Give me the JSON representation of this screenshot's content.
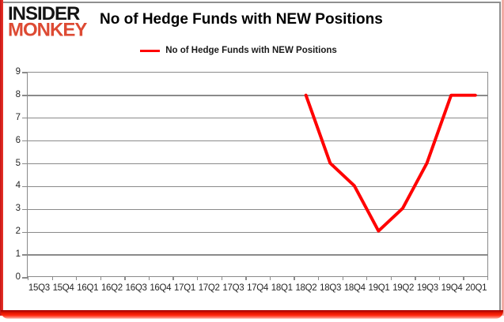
{
  "logo": {
    "line1": "INSIDER",
    "line2": "MONKEY"
  },
  "header": {
    "title": "No of Hedge Funds with NEW Positions"
  },
  "legend": {
    "label": "No of Hedge Funds with NEW Positions"
  },
  "colors": {
    "line": "#FF0000",
    "accent_red": "#E81800",
    "logo_red": "#DD4A33",
    "grid": "#8A8A8A",
    "text": "#262626"
  },
  "chart_data": {
    "type": "line",
    "title": "No of Hedge Funds with NEW Positions",
    "categories": [
      "15Q3",
      "15Q4",
      "16Q1",
      "16Q2",
      "16Q3",
      "16Q4",
      "17Q1",
      "17Q2",
      "17Q3",
      "17Q4",
      "18Q1",
      "18Q2",
      "18Q3",
      "18Q4",
      "19Q1",
      "19Q2",
      "19Q3",
      "19Q4",
      "20Q1"
    ],
    "series": [
      {
        "name": "No of Hedge Funds with NEW Positions",
        "color": "#FF0000",
        "values": [
          null,
          null,
          null,
          null,
          null,
          null,
          null,
          null,
          null,
          null,
          null,
          8,
          5,
          4,
          2,
          3,
          5,
          8,
          8
        ]
      }
    ],
    "xlabel": "",
    "ylabel": "",
    "ylim": [
      0,
      9
    ],
    "ytick_step": 1,
    "grid": true,
    "legend_position": "top-center"
  }
}
